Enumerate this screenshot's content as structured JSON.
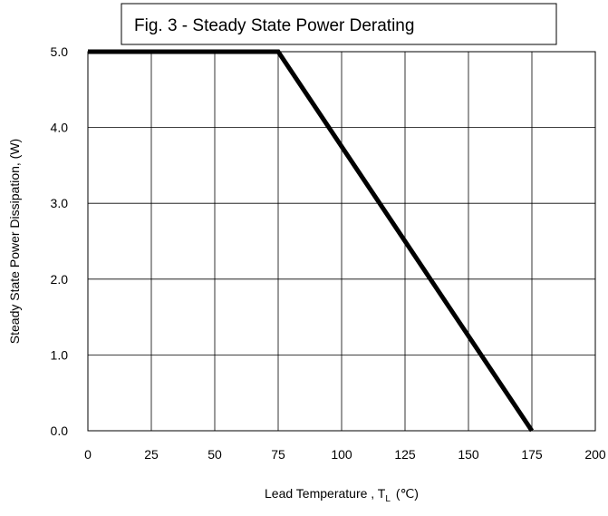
{
  "chart_data": {
    "type": "line",
    "title": "Fig. 3 - Steady State Power Derating",
    "xlabel": "Lead Temperature , T",
    "xlabel_subscript": "L",
    "xlabel_unit": "(℃)",
    "ylabel": "Steady State Power Dissipation, (W)",
    "xlim": [
      0,
      200
    ],
    "ylim": [
      0,
      5
    ],
    "x_ticks": [
      "0",
      "25",
      "50",
      "75",
      "100",
      "125",
      "150",
      "175",
      "200"
    ],
    "y_ticks": [
      "0.0",
      "1.0",
      "2.0",
      "3.0",
      "4.0",
      "5.0"
    ],
    "grid": true,
    "series": [
      {
        "x": [
          0,
          75,
          175
        ],
        "y": [
          5.0,
          5.0,
          0.0
        ],
        "color": "#000000"
      }
    ]
  }
}
